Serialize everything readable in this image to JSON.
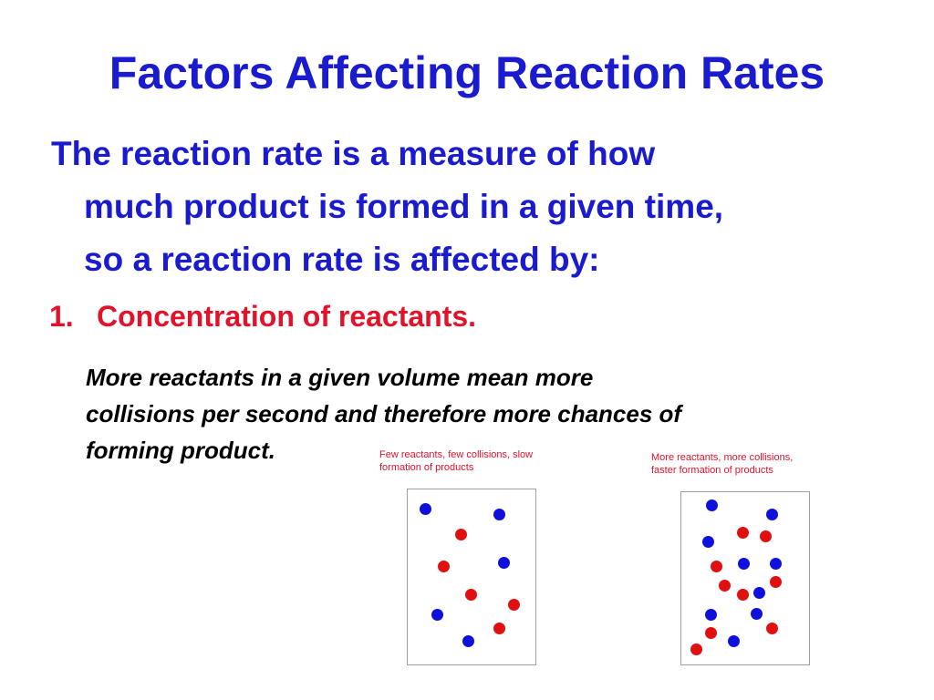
{
  "slide": {
    "title": "Factors Affecting Reaction Rates",
    "intro_lines": [
      "The reaction rate is a measure of how",
      "much product is formed in a given time,",
      "so a reaction rate is affected by:"
    ],
    "list_item": {
      "number": "1.",
      "text": "Concentration of reactants."
    },
    "description_lines": [
      "More reactants in a given volume mean more",
      "collisions per second and therefore more chances of",
      "forming product."
    ]
  },
  "diagrams": [
    {
      "caption_lines": [
        "Few reactants, few collisions, slow",
        "formation of products"
      ],
      "blue_count": 5,
      "red_count": 5
    },
    {
      "caption_lines": [
        "More reactants, more collisions,",
        "faster formation of products"
      ],
      "blue_count": 9,
      "red_count": 9
    }
  ],
  "colors": {
    "title": "#1a1acf",
    "list": "#e3122b",
    "blue_particle": "#1010dd",
    "red_particle": "#e01010"
  }
}
